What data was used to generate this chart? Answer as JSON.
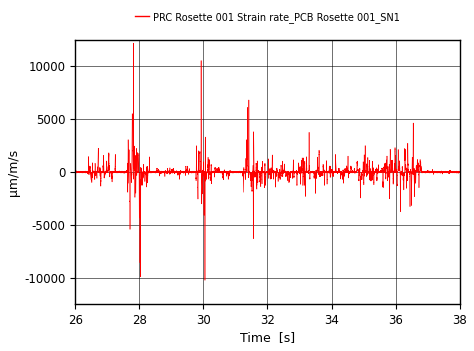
{
  "legend_label": "PRC Rosette 001 Strain rate_PCB Rosette 001_SN1",
  "xlabel": "Time  [s]",
  "ylabel": "μm/m/s",
  "xlim": [
    26,
    38
  ],
  "ylim": [
    -12500,
    12500
  ],
  "yticks": [
    -10000,
    -5000,
    0,
    5000,
    10000
  ],
  "xticks": [
    26,
    28,
    30,
    32,
    34,
    36,
    38
  ],
  "line_color": "red",
  "line_width": 0.4,
  "background_color": "#ffffff",
  "seed": 42,
  "fs": 5000
}
